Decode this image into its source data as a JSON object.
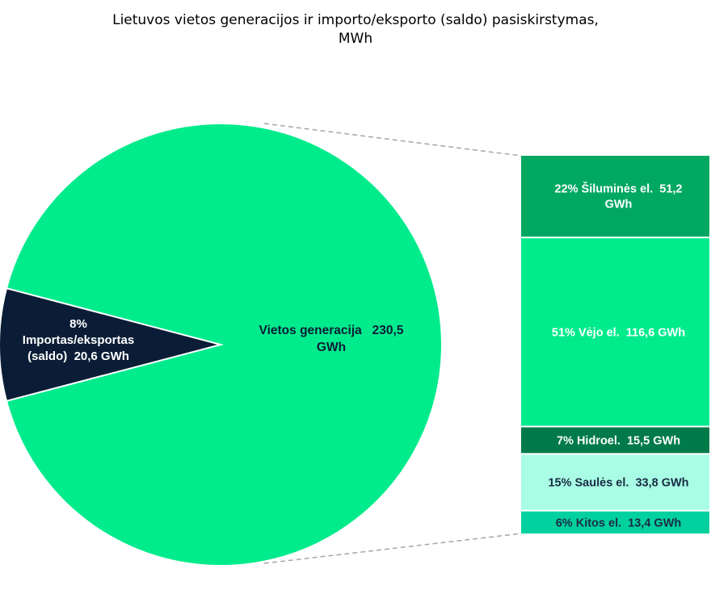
{
  "chart_data": {
    "type": "pie",
    "title_line1": "Lietuvos vietos generacijos ir importo/eksporto (saldo) pasiskirstymas,",
    "title_line2": "MWh",
    "slices": [
      {
        "key": "vietos",
        "label_lines": [
          "Vietos generacija   230,5",
          "GWh"
        ],
        "value": 230.5,
        "color": "#00eb8c"
      },
      {
        "key": "importas",
        "label_lines": [
          "8%",
          "Importas/eksportas",
          "(saldo)  20,6 GWh"
        ],
        "value": 20.6,
        "percent": 8,
        "color": "#0b1d36"
      }
    ],
    "breakdown": [
      {
        "key": "siluma",
        "label_lines": [
          "22% Šiluminės el.  51,2",
          "GWh"
        ],
        "percent": 22,
        "value": 51.2,
        "color": "#00a862",
        "text_color": "#ffffff"
      },
      {
        "key": "vejas",
        "label_lines": [
          "51% Vėjo el.  116,6 GWh"
        ],
        "percent": 51,
        "value": 116.6,
        "color": "#00eb8c",
        "text_color": "#ffffff"
      },
      {
        "key": "hidro",
        "label_lines": [
          "7% Hidroel.  15,5 GWh"
        ],
        "percent": 7,
        "value": 15.5,
        "color": "#007a48",
        "text_color": "#ffffff"
      },
      {
        "key": "saule",
        "label_lines": [
          "15% Saulės el.  33,8 GWh"
        ],
        "percent": 15,
        "value": 33.8,
        "color": "#a8fde4",
        "text_color": "#1a2b45"
      },
      {
        "key": "kitos",
        "label_lines": [
          "6% Kitos el.  13,4 GWh"
        ],
        "percent": 6,
        "value": 13.4,
        "color": "#00d19e",
        "text_color": "#1a2b45"
      }
    ]
  }
}
